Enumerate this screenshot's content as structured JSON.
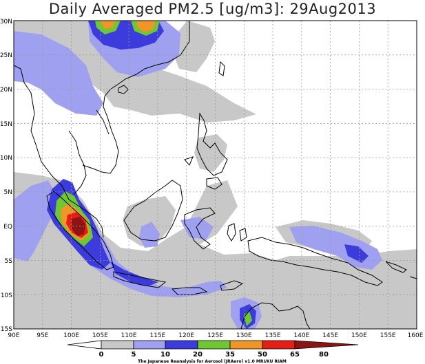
{
  "title": "Daily Averaged PM2.5 [ug/m3]: 29Aug2013",
  "x_ticks": [
    "90E",
    "95E",
    "100E",
    "105E",
    "110E",
    "115E",
    "120E",
    "125E",
    "130E",
    "135E",
    "140E",
    "145E",
    "150E",
    "155E",
    "160E"
  ],
  "y_ticks": [
    "30N",
    "25N",
    "20N",
    "15N",
    "10N",
    "5N",
    "EQ",
    "5S",
    "10S",
    "15S"
  ],
  "colorbar": {
    "labels": [
      "0",
      "5",
      "10",
      "20",
      "35",
      "50",
      "65",
      "80"
    ],
    "colors": [
      "#ffffff",
      "#c8c8c8",
      "#a0a0f0",
      "#3c3cdc",
      "#6ec832",
      "#f09628",
      "#e61e14",
      "#8c1414"
    ]
  },
  "credit": "The Japanese Reanalysis for Aerosol (JRAero) v1.0 MRI/KU RIAM",
  "colors": {
    "light_gray": "#c8c8c8",
    "light_blue": "#a0a0f0",
    "blue": "#3c3cdc",
    "green": "#6ec832",
    "orange": "#f09628",
    "red": "#e61e14",
    "dark_red": "#8c1414",
    "coast": "#000000"
  },
  "map": {
    "lon_range": [
      90,
      160
    ],
    "lat_range": [
      -15,
      30
    ],
    "grid": true
  }
}
